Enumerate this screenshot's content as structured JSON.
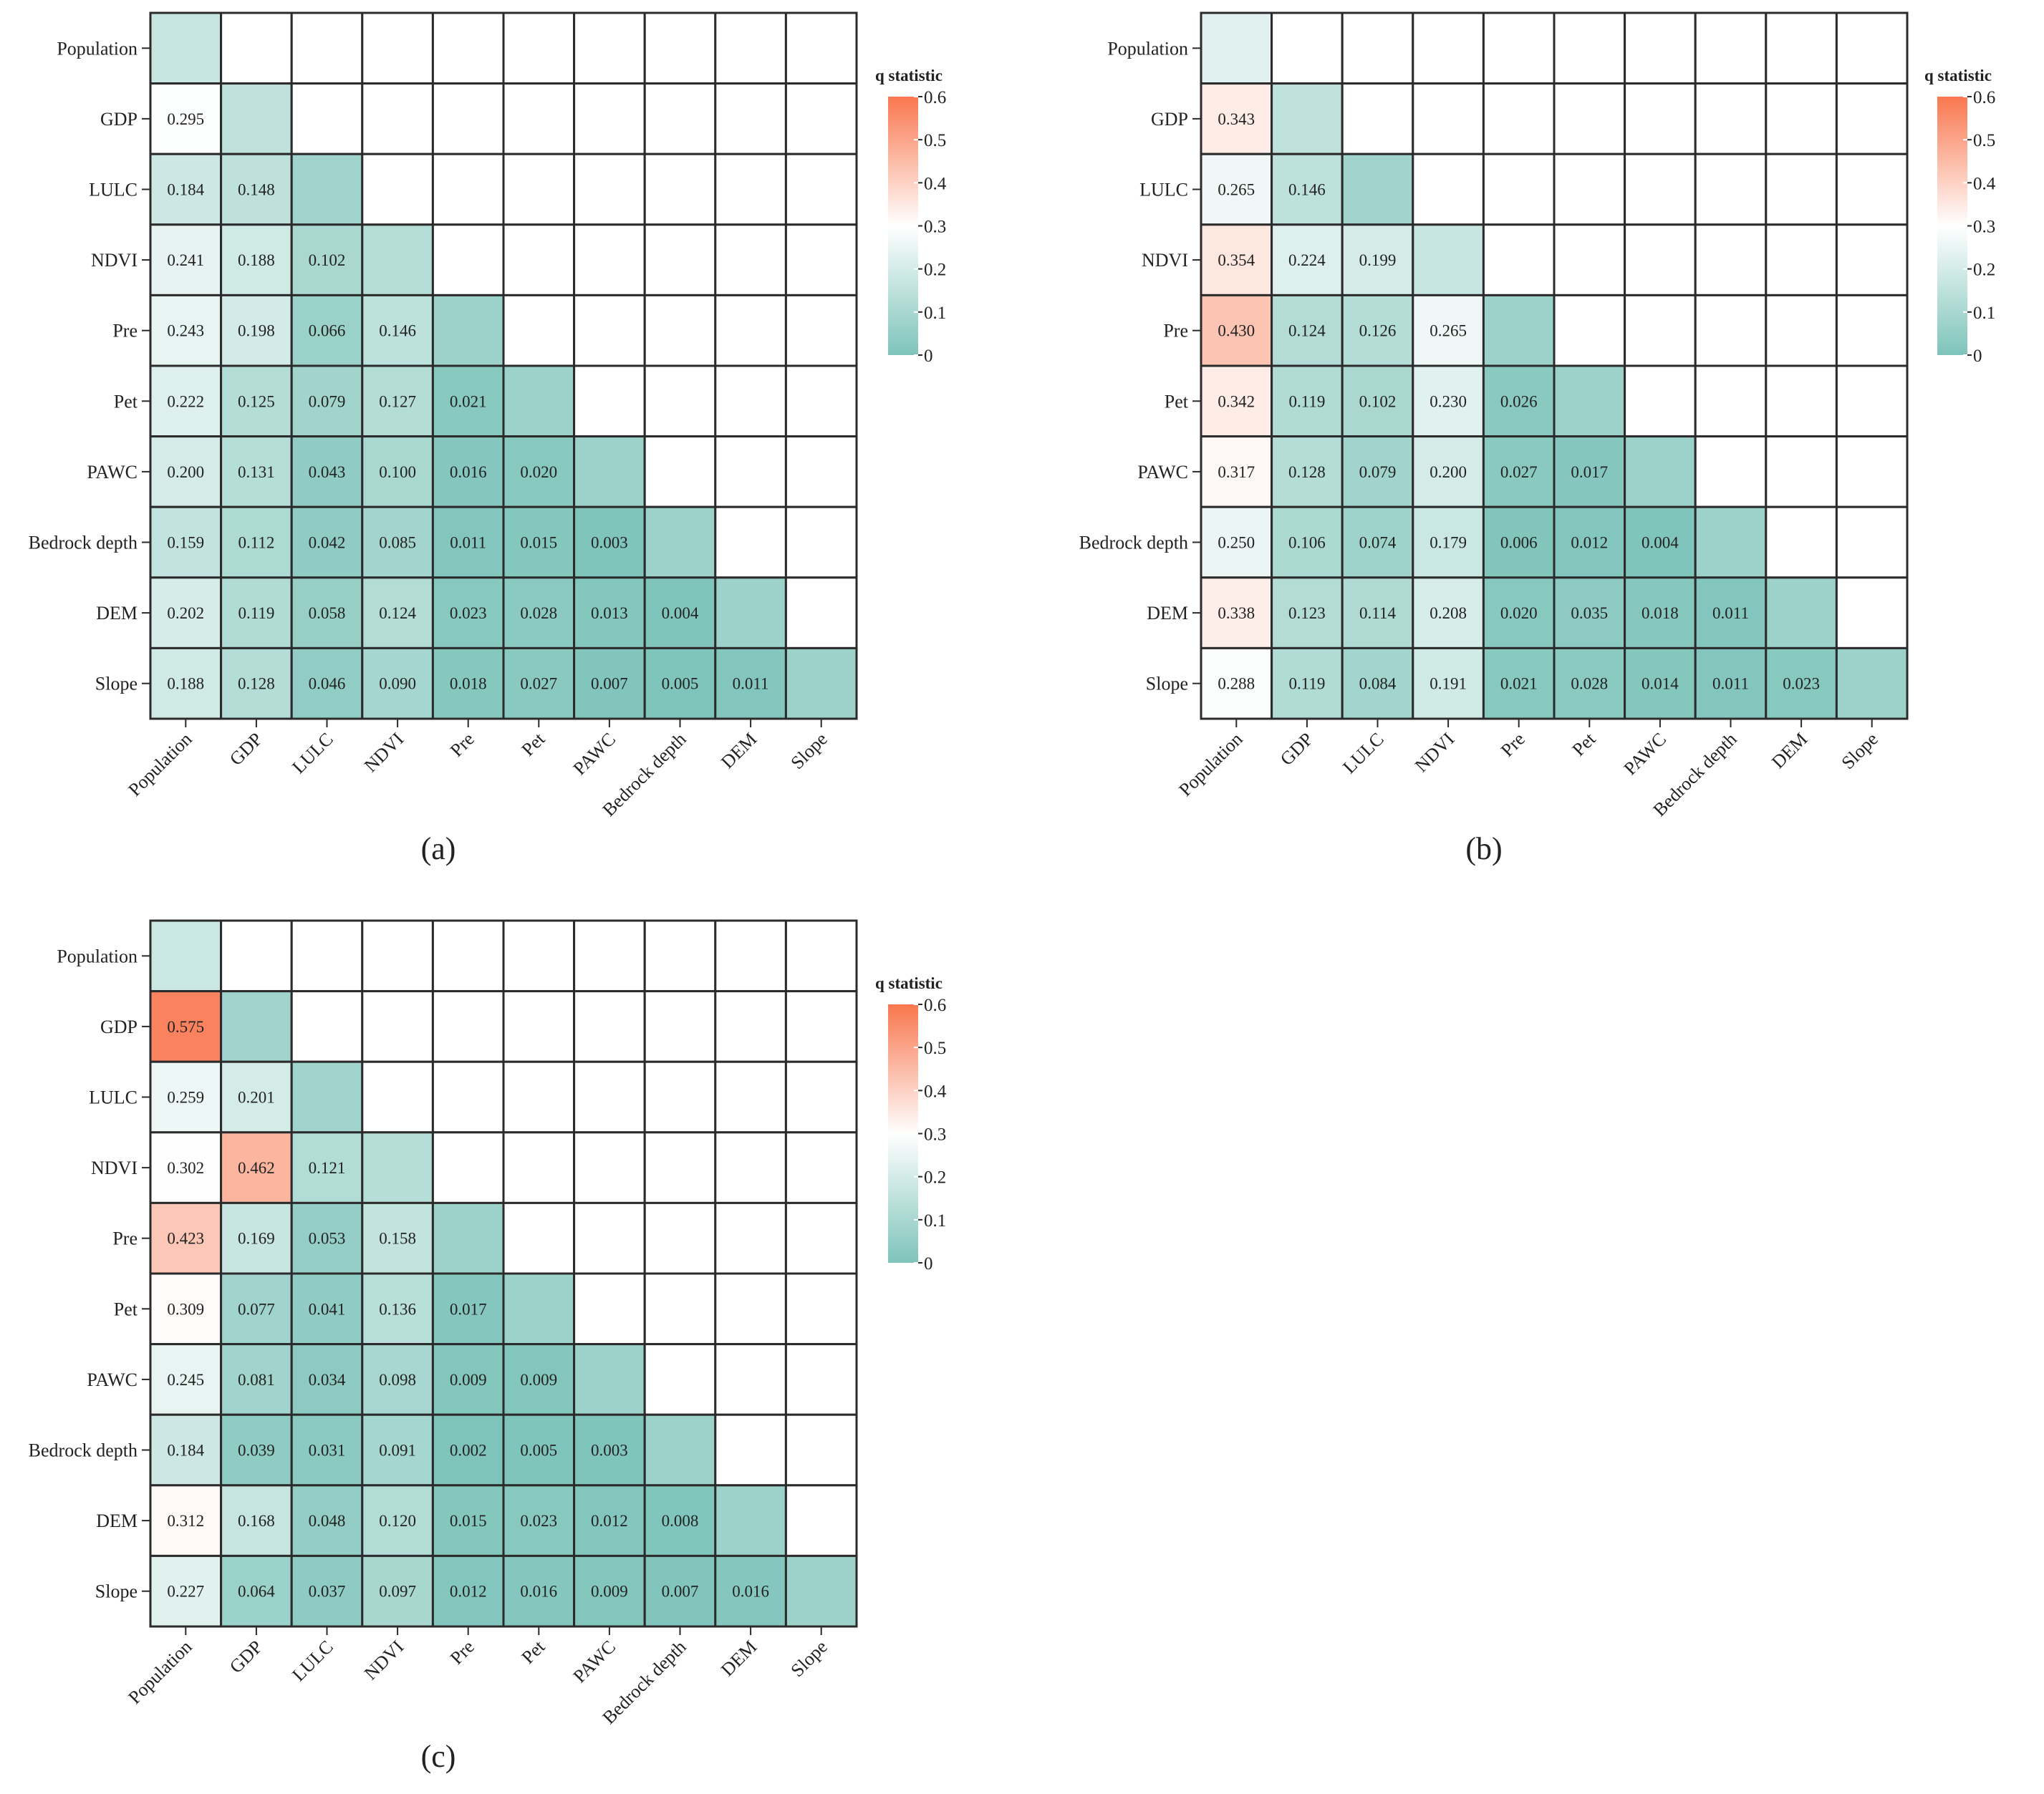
{
  "chart_data": [
    {
      "type": "heatmap",
      "panel_label": "(a)",
      "variables": [
        "Population",
        "GDP",
        "LULC",
        "NDVI",
        "Pre",
        "Pet",
        "PAWC",
        "Bedrock depth",
        "DEM",
        "Slope"
      ],
      "diagonal_values": [
        0.17,
        0.15,
        0.08,
        0.13,
        0.07,
        0.07,
        0.07,
        0.07,
        0.07,
        0.07
      ],
      "values": [
        [
          0.295
        ],
        [
          0.184,
          0.148
        ],
        [
          0.241,
          0.188,
          0.102
        ],
        [
          0.243,
          0.198,
          0.066,
          0.146
        ],
        [
          0.222,
          0.125,
          0.079,
          0.127,
          0.021
        ],
        [
          0.2,
          0.131,
          0.043,
          0.1,
          0.016,
          0.02
        ],
        [
          0.159,
          0.112,
          0.042,
          0.085,
          0.011,
          0.015,
          0.003
        ],
        [
          0.202,
          0.119,
          0.058,
          0.124,
          0.023,
          0.028,
          0.013,
          0.004
        ],
        [
          0.188,
          0.128,
          0.046,
          0.09,
          0.018,
          0.027,
          0.007,
          0.005,
          0.011
        ]
      ],
      "legend": {
        "title": "q statistic",
        "ticks": [
          "0",
          "0.1",
          "0.2",
          "0.3",
          "0.4",
          "0.5",
          "0.6"
        ],
        "range": [
          0,
          0.6
        ]
      }
    },
    {
      "type": "heatmap",
      "panel_label": "(b)",
      "variables": [
        "Population",
        "GDP",
        "LULC",
        "NDVI",
        "Pre",
        "Pet",
        "PAWC",
        "Bedrock depth",
        "DEM",
        "Slope"
      ],
      "diagonal_values": [
        0.23,
        0.15,
        0.08,
        0.17,
        0.07,
        0.07,
        0.07,
        0.07,
        0.07,
        0.07
      ],
      "values": [
        [
          0.343
        ],
        [
          0.265,
          0.146
        ],
        [
          0.354,
          0.224,
          0.199
        ],
        [
          0.43,
          0.124,
          0.126,
          0.265
        ],
        [
          0.342,
          0.119,
          0.102,
          0.23,
          0.026
        ],
        [
          0.317,
          0.128,
          0.079,
          0.2,
          0.027,
          0.017
        ],
        [
          0.25,
          0.106,
          0.074,
          0.179,
          0.006,
          0.012,
          0.004
        ],
        [
          0.338,
          0.123,
          0.114,
          0.208,
          0.02,
          0.035,
          0.018,
          0.011
        ],
        [
          0.288,
          0.119,
          0.084,
          0.191,
          0.021,
          0.028,
          0.014,
          0.011,
          0.023
        ]
      ],
      "legend": {
        "title": "q statistic",
        "ticks": [
          "0",
          "0.1",
          "0.2",
          "0.3",
          "0.4",
          "0.5",
          "0.6"
        ],
        "range": [
          0,
          0.6
        ]
      }
    },
    {
      "type": "heatmap",
      "panel_label": "(c)",
      "variables": [
        "Population",
        "GDP",
        "LULC",
        "NDVI",
        "Pre",
        "Pet",
        "PAWC",
        "Bedrock depth",
        "DEM",
        "Slope"
      ],
      "diagonal_values": [
        0.18,
        0.08,
        0.08,
        0.13,
        0.07,
        0.07,
        0.07,
        0.07,
        0.07,
        0.07
      ],
      "values": [
        [
          0.575
        ],
        [
          0.259,
          0.201
        ],
        [
          0.302,
          0.462,
          0.121
        ],
        [
          0.423,
          0.169,
          0.053,
          0.158
        ],
        [
          0.309,
          0.077,
          0.041,
          0.136,
          0.017
        ],
        [
          0.245,
          0.081,
          0.034,
          0.098,
          0.009,
          0.009
        ],
        [
          0.184,
          0.039,
          0.031,
          0.091,
          0.002,
          0.005,
          0.003
        ],
        [
          0.312,
          0.168,
          0.048,
          0.12,
          0.015,
          0.023,
          0.012,
          0.008
        ],
        [
          0.227,
          0.064,
          0.037,
          0.097,
          0.012,
          0.016,
          0.009,
          0.007,
          0.016
        ]
      ],
      "legend": {
        "title": "q statistic",
        "ticks": [
          "0",
          "0.1",
          "0.2",
          "0.3",
          "0.4",
          "0.5",
          "0.6"
        ],
        "range": [
          0,
          0.6
        ]
      }
    }
  ],
  "colors": {
    "low": "#7ec4ba",
    "mid": "#ffffff",
    "high": "#f9774f",
    "grid": "#2b2b2b",
    "text": "#222222"
  }
}
